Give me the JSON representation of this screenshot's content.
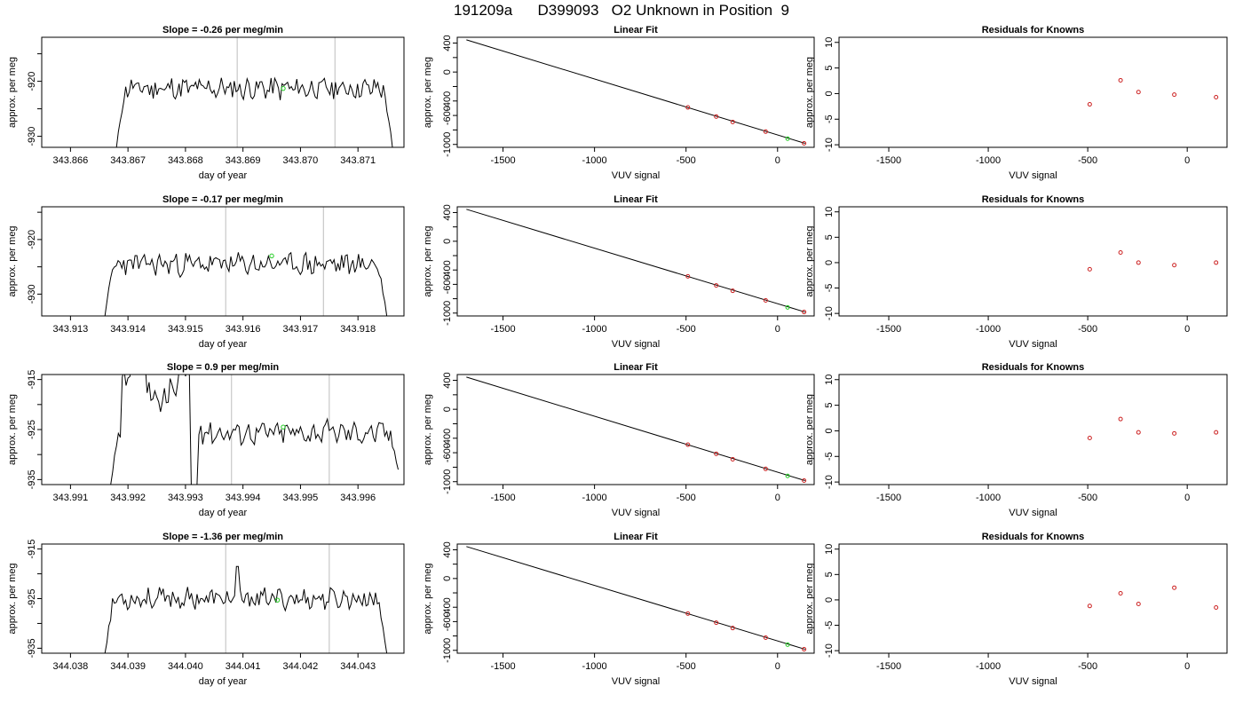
{
  "title": "191209a      D399093   O2 Unknown in Position  9",
  "colors": {
    "line": "#000000",
    "known": "#cc2222",
    "unknown": "#22cc22",
    "vline": "#c8c8c8"
  },
  "chart_data": [
    {
      "type": "line",
      "title": "Slope =  -0.26  per meg/min",
      "xlabel": "day of year",
      "ylabel": "approx. per meg",
      "xlim": [
        343.8655,
        343.8718
      ],
      "ylim": [
        -932.0,
        -912.0
      ],
      "xticks": [
        343.866,
        343.867,
        343.868,
        343.869,
        343.87,
        343.871
      ],
      "xtick_labels": [
        "343.866",
        "343.867",
        "343.868",
        "343.869",
        "343.870",
        "343.871"
      ],
      "yticks": [
        -930,
        -920
      ],
      "ytick_labels": [
        "-930",
        "-920"
      ],
      "minor_yticks": [
        -925,
        -915
      ],
      "vlines": [
        343.8689,
        343.8706
      ],
      "trace": {
        "start": 343.8668,
        "end": 343.8716,
        "level": -921.3,
        "amp": 1.8,
        "entry": -932,
        "exit": -932,
        "seed": 11
      },
      "unknown_point": {
        "x": 343.8697,
        "y": -921.3
      }
    },
    {
      "type": "scatter",
      "title": "Linear Fit",
      "xlabel": "VUV signal",
      "ylabel": "approx. per meg",
      "xlim": [
        -1750,
        200
      ],
      "ylim": [
        -1040,
        480
      ],
      "xticks": [
        -1500,
        -1000,
        -500,
        0
      ],
      "xtick_labels": [
        "-1500",
        "-1000",
        "-500",
        "0"
      ],
      "yticks": [
        -1000,
        -800,
        -600,
        -400,
        -200,
        0,
        200,
        400
      ],
      "ytick_labels": [
        "-1000",
        "",
        "-600",
        "-400",
        "",
        "0",
        "",
        "400"
      ],
      "fit_line": {
        "x": [
          -1700,
          150
        ],
        "y": [
          445,
          -985
        ]
      },
      "knowns": [
        {
          "x": -490,
          "y": -489
        },
        {
          "x": -335,
          "y": -615
        },
        {
          "x": -245,
          "y": -690
        },
        {
          "x": -65,
          "y": -823
        },
        {
          "x": 145,
          "y": -985
        }
      ],
      "unknown": {
        "x": 55,
        "y": -921
      }
    },
    {
      "type": "scatter",
      "title": "Residuals for Knowns",
      "xlabel": "VUV signal",
      "ylabel": "approx. per meg",
      "xlim": [
        -1750,
        200
      ],
      "ylim": [
        -10.5,
        11
      ],
      "xticks": [
        -1500,
        -1000,
        -500,
        0
      ],
      "xtick_labels": [
        "-1500",
        "-1000",
        "-500",
        "0"
      ],
      "yticks": [
        -10,
        -5,
        0,
        5,
        10
      ],
      "ytick_labels": [
        "-10",
        "-5",
        "0",
        "5",
        "10"
      ],
      "points": [
        {
          "x": -490,
          "y": -2.1
        },
        {
          "x": -335,
          "y": 2.6
        },
        {
          "x": -245,
          "y": 0.3
        },
        {
          "x": -65,
          "y": -0.2
        },
        {
          "x": 145,
          "y": -0.7
        }
      ]
    },
    {
      "type": "line",
      "title": "Slope =  -0.17  per meg/min",
      "xlabel": "day of year",
      "ylabel": "approx. per meg",
      "xlim": [
        343.9125,
        343.9188
      ],
      "ylim": [
        -934.0,
        -914.0
      ],
      "xticks": [
        343.913,
        343.914,
        343.915,
        343.916,
        343.917,
        343.918
      ],
      "xtick_labels": [
        "343.913",
        "343.914",
        "343.915",
        "343.916",
        "343.917",
        "343.918"
      ],
      "yticks": [
        -930,
        -920
      ],
      "ytick_labels": [
        "-930",
        "-920"
      ],
      "minor_yticks": [
        -925,
        -915
      ],
      "vlines": [
        343.9157,
        343.9174
      ],
      "trace": {
        "start": 343.9136,
        "end": 343.9185,
        "level": -924.5,
        "amp": 1.8,
        "entry": -934,
        "exit": -934,
        "seed": 23
      },
      "unknown_point": {
        "x": 343.9165,
        "y": -923.0
      }
    },
    {
      "type": "scatter",
      "title": "Linear Fit",
      "xlabel": "VUV signal",
      "ylabel": "approx. per meg",
      "xlim": [
        -1750,
        200
      ],
      "ylim": [
        -1040,
        480
      ],
      "xticks": [
        -1500,
        -1000,
        -500,
        0
      ],
      "xtick_labels": [
        "-1500",
        "-1000",
        "-500",
        "0"
      ],
      "yticks": [
        -1000,
        -800,
        -600,
        -400,
        -200,
        0,
        200,
        400
      ],
      "ytick_labels": [
        "-1000",
        "",
        "-600",
        "-400",
        "",
        "0",
        "",
        "400"
      ],
      "fit_line": {
        "x": [
          -1700,
          150
        ],
        "y": [
          445,
          -985
        ]
      },
      "knowns": [
        {
          "x": -490,
          "y": -489
        },
        {
          "x": -335,
          "y": -615
        },
        {
          "x": -245,
          "y": -690
        },
        {
          "x": -65,
          "y": -823
        },
        {
          "x": 145,
          "y": -985
        }
      ],
      "unknown": {
        "x": 55,
        "y": -921
      }
    },
    {
      "type": "scatter",
      "title": "Residuals for Knowns",
      "xlabel": "VUV signal",
      "ylabel": "approx. per meg",
      "xlim": [
        -1750,
        200
      ],
      "ylim": [
        -10.5,
        11
      ],
      "xticks": [
        -1500,
        -1000,
        -500,
        0
      ],
      "xtick_labels": [
        "-1500",
        "-1000",
        "-500",
        "0"
      ],
      "yticks": [
        -10,
        -5,
        0,
        5,
        10
      ],
      "ytick_labels": [
        "-10",
        "-5",
        "0",
        "5",
        "10"
      ],
      "points": [
        {
          "x": -490,
          "y": -1.3
        },
        {
          "x": -335,
          "y": 2.0
        },
        {
          "x": -245,
          "y": 0.0
        },
        {
          "x": -65,
          "y": -0.5
        },
        {
          "x": 145,
          "y": 0.0
        }
      ]
    },
    {
      "type": "line",
      "title": "Slope =  0.9  per meg/min",
      "xlabel": "day of year",
      "ylabel": "approx. per meg",
      "xlim": [
        343.9905,
        343.9968
      ],
      "ylim": [
        -936.0,
        -914.0
      ],
      "xticks": [
        343.991,
        343.992,
        343.993,
        343.994,
        343.995,
        343.996
      ],
      "xtick_labels": [
        "343.991",
        "343.992",
        "343.993",
        "343.994",
        "343.995",
        "343.996"
      ],
      "yticks": [
        -935,
        -925,
        -915
      ],
      "ytick_labels": [
        "-935",
        "-925",
        "-915"
      ],
      "minor_yticks": [
        -930,
        -920
      ],
      "vlines": [
        343.9938,
        343.9955
      ],
      "trace": {
        "start": 343.9917,
        "end": 343.9967,
        "level": -925.5,
        "amp": 2.0,
        "entry": -936,
        "exit": -933,
        "seed": 37,
        "spike": {
          "start": 343.9919,
          "end": 343.9932,
          "level": -916
        }
      },
      "unknown_point": {
        "x": 343.9947,
        "y": -924.5
      }
    },
    {
      "type": "scatter",
      "title": "Linear Fit",
      "xlabel": "VUV signal",
      "ylabel": "approx. per meg",
      "xlim": [
        -1750,
        200
      ],
      "ylim": [
        -1040,
        480
      ],
      "xticks": [
        -1500,
        -1000,
        -500,
        0
      ],
      "xtick_labels": [
        "-1500",
        "-1000",
        "-500",
        "0"
      ],
      "yticks": [
        -1000,
        -800,
        -600,
        -400,
        -200,
        0,
        200,
        400
      ],
      "ytick_labels": [
        "-1000",
        "",
        "-600",
        "-400",
        "",
        "0",
        "",
        "400"
      ],
      "fit_line": {
        "x": [
          -1700,
          150
        ],
        "y": [
          445,
          -985
        ]
      },
      "knowns": [
        {
          "x": -490,
          "y": -489
        },
        {
          "x": -335,
          "y": -615
        },
        {
          "x": -245,
          "y": -690
        },
        {
          "x": -65,
          "y": -823
        },
        {
          "x": 145,
          "y": -985
        }
      ],
      "unknown": {
        "x": 55,
        "y": -921
      }
    },
    {
      "type": "scatter",
      "title": "Residuals for Knowns",
      "xlabel": "VUV signal",
      "ylabel": "approx. per meg",
      "xlim": [
        -1750,
        200
      ],
      "ylim": [
        -10.5,
        11
      ],
      "xticks": [
        -1500,
        -1000,
        -500,
        0
      ],
      "xtick_labels": [
        "-1500",
        "-1000",
        "-500",
        "0"
      ],
      "yticks": [
        -10,
        -5,
        0,
        5,
        10
      ],
      "ytick_labels": [
        "-10",
        "-5",
        "0",
        "5",
        "10"
      ],
      "points": [
        {
          "x": -490,
          "y": -1.4
        },
        {
          "x": -335,
          "y": 2.3
        },
        {
          "x": -245,
          "y": -0.3
        },
        {
          "x": -65,
          "y": -0.5
        },
        {
          "x": 145,
          "y": -0.3
        }
      ]
    },
    {
      "type": "line",
      "title": "Slope =  -1.36  per meg/min",
      "xlabel": "day of year",
      "ylabel": "approx. per meg",
      "xlim": [
        344.0375,
        344.0438
      ],
      "ylim": [
        -936.0,
        -914.0
      ],
      "xticks": [
        344.038,
        344.039,
        344.04,
        344.041,
        344.042,
        344.043
      ],
      "xtick_labels": [
        "344.038",
        "344.039",
        "344.040",
        "344.041",
        "344.042",
        "344.043"
      ],
      "yticks": [
        -935,
        -925,
        -915
      ],
      "ytick_labels": [
        "-935",
        "-925",
        "-915"
      ],
      "minor_yticks": [
        -930,
        -920
      ],
      "vlines": [
        344.0407,
        344.0425
      ],
      "trace": {
        "start": 344.0386,
        "end": 344.0435,
        "level": -925.0,
        "amp": 1.8,
        "entry": -936,
        "exit": -936,
        "seed": 53,
        "peak": {
          "x": 344.0409,
          "y": -918.5
        }
      },
      "unknown_point": {
        "x": 344.0416,
        "y": -925.3
      }
    },
    {
      "type": "scatter",
      "title": "Linear Fit",
      "xlabel": "VUV signal",
      "ylabel": "approx. per meg",
      "xlim": [
        -1750,
        200
      ],
      "ylim": [
        -1040,
        480
      ],
      "xticks": [
        -1500,
        -1000,
        -500,
        0
      ],
      "xtick_labels": [
        "-1500",
        "-1000",
        "-500",
        "0"
      ],
      "yticks": [
        -1000,
        -800,
        -600,
        -400,
        -200,
        0,
        200,
        400
      ],
      "ytick_labels": [
        "-1000",
        "",
        "-600",
        "-400",
        "",
        "0",
        "",
        "400"
      ],
      "fit_line": {
        "x": [
          -1700,
          150
        ],
        "y": [
          445,
          -985
        ]
      },
      "knowns": [
        {
          "x": -490,
          "y": -489
        },
        {
          "x": -335,
          "y": -615
        },
        {
          "x": -245,
          "y": -690
        },
        {
          "x": -65,
          "y": -823
        },
        {
          "x": 145,
          "y": -985
        }
      ],
      "unknown": {
        "x": 55,
        "y": -921
      }
    },
    {
      "type": "scatter",
      "title": "Residuals for Knowns",
      "xlabel": "VUV signal",
      "ylabel": "approx. per meg",
      "xlim": [
        -1750,
        200
      ],
      "ylim": [
        -10.5,
        11
      ],
      "xticks": [
        -1500,
        -1000,
        -500,
        0
      ],
      "xtick_labels": [
        "-1500",
        "-1000",
        "-500",
        "0"
      ],
      "yticks": [
        -10,
        -5,
        0,
        5,
        10
      ],
      "ytick_labels": [
        "-10",
        "-5",
        "0",
        "5",
        "10"
      ],
      "points": [
        {
          "x": -490,
          "y": -1.2
        },
        {
          "x": -335,
          "y": 1.3
        },
        {
          "x": -245,
          "y": -0.8
        },
        {
          "x": -65,
          "y": 2.4
        },
        {
          "x": 145,
          "y": -1.5
        }
      ]
    }
  ]
}
